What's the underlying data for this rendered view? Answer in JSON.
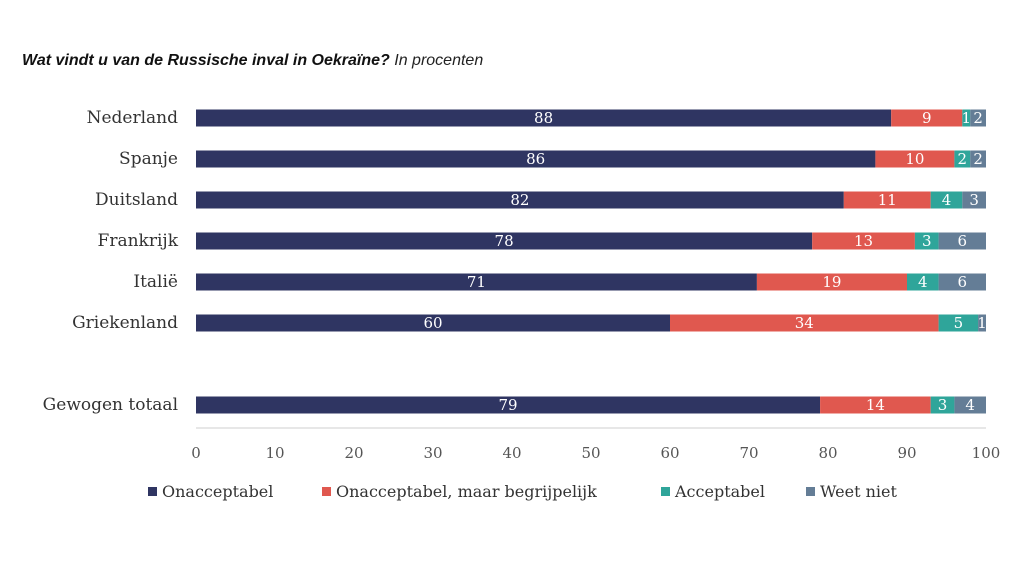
{
  "header": {
    "title_bold": "Wat vindt u van de Russische inval in Oekraïne?",
    "title_italic": "In procenten"
  },
  "chart_data": {
    "type": "bar",
    "orientation": "horizontal",
    "stacked": true,
    "title": "Wat vindt u van de Russische inval in Oekraïne? In procenten",
    "categories": [
      "Nederland",
      "Spanje",
      "Duitsland",
      "Frankrijk",
      "Italië",
      "Griekenland",
      "Gewogen totaal"
    ],
    "series": [
      {
        "name": "Onacceptabel",
        "color": "#2f3562",
        "values": [
          88,
          86,
          82,
          78,
          71,
          60,
          79
        ]
      },
      {
        "name": "Onacceptabel, maar begrijpelijk",
        "color": "#e0584f",
        "values": [
          9,
          10,
          11,
          13,
          19,
          34,
          14
        ]
      },
      {
        "name": "Acceptabel",
        "color": "#2fa59a",
        "values": [
          1,
          2,
          4,
          3,
          4,
          5,
          3
        ]
      },
      {
        "name": "Weet niet",
        "color": "#647d96",
        "values": [
          2,
          2,
          3,
          6,
          6,
          1,
          4
        ]
      }
    ],
    "xlim": [
      0,
      100
    ],
    "xticks": [
      0,
      10,
      20,
      30,
      40,
      50,
      60,
      70,
      80,
      90,
      100
    ],
    "legend_position": "bottom"
  }
}
